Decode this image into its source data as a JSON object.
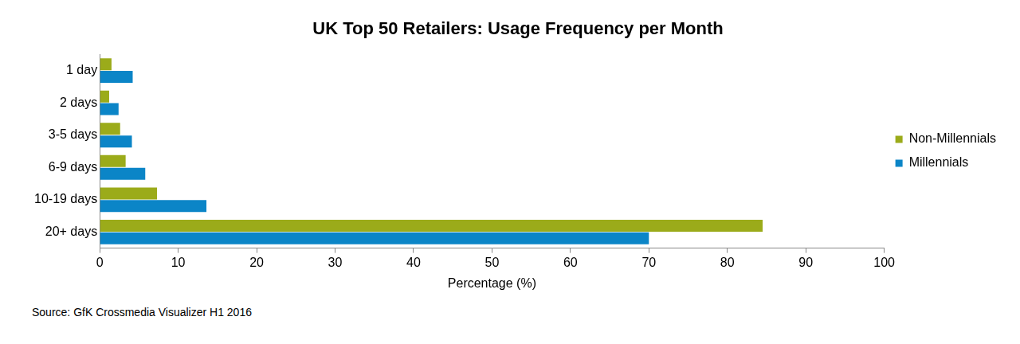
{
  "chart_data": {
    "type": "bar",
    "title": "UK Top 50 Retailers: Usage Frequency per Month",
    "orientation": "horizontal",
    "categories": [
      "1 day",
      "2 days",
      "3-5 days",
      "6-9 days",
      "10-19 days",
      "20+ days"
    ],
    "series": [
      {
        "name": "Non-Millennials",
        "color": "#9bab1a",
        "values": [
          1.5,
          1.2,
          2.6,
          3.3,
          7.3,
          84.5
        ]
      },
      {
        "name": "Millennials",
        "color": "#0b85c7",
        "values": [
          4.2,
          2.4,
          4.1,
          5.8,
          13.6,
          70.0
        ]
      }
    ],
    "xlabel": "Percentage (%)",
    "xlim": [
      0,
      100
    ],
    "xticks": [
      0,
      10,
      20,
      30,
      40,
      50,
      60,
      70,
      80,
      90,
      100
    ],
    "grid": false,
    "legend": "right",
    "annotations": [
      "Source: GfK Crossmedia Visualizer H1 2016"
    ]
  }
}
